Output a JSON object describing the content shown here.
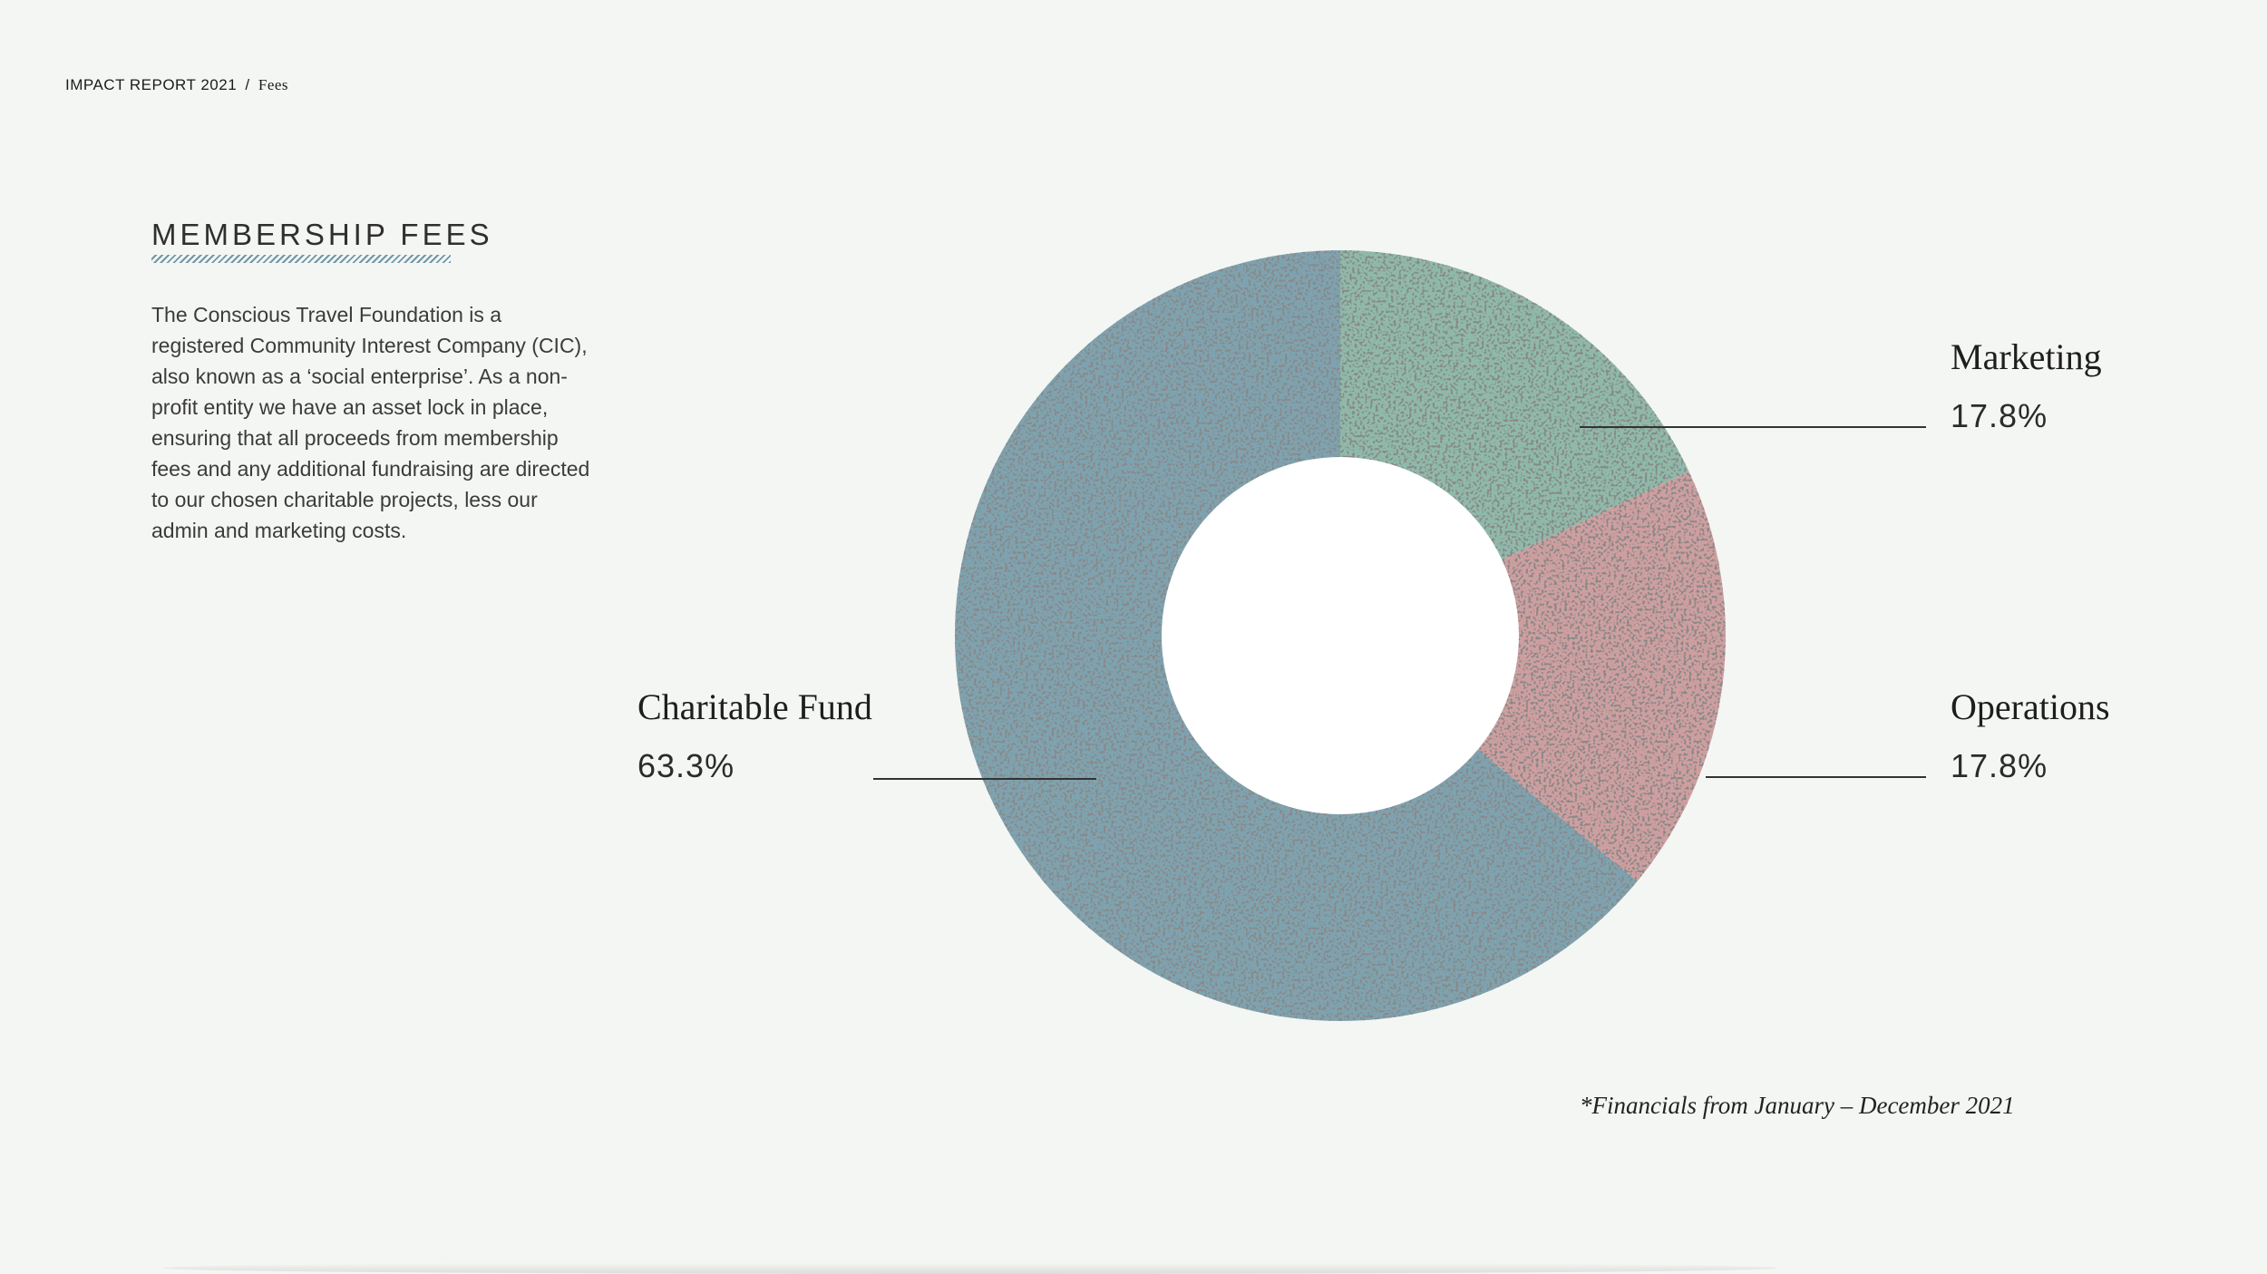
{
  "breadcrumb": {
    "root": "IMPACT REPORT 2021",
    "separator": "/",
    "current": "Fees"
  },
  "section": {
    "title": "MEMBERSHIP FEES",
    "body": "The Conscious Travel Foundation is a registered Community Interest Company (CIC), also known as a  ‘social enterprise’. As a non-profit entity we have an asset lock in place, ensuring that all proceeds from membership fees and any additional fundraising are directed to our chosen charitable projects, less our admin and marketing costs."
  },
  "chart_data": {
    "type": "pie",
    "donut": true,
    "categories": [
      "Marketing",
      "Operations",
      "Charitable Fund"
    ],
    "values": [
      17.8,
      17.8,
      63.3
    ],
    "value_labels": [
      "17.8%",
      "17.8%",
      "63.3%"
    ],
    "colors": [
      "#8fbaaa",
      "#cf9fa0",
      "#7ea3b0"
    ]
  },
  "footnote": "*Financials from January – December 2021"
}
